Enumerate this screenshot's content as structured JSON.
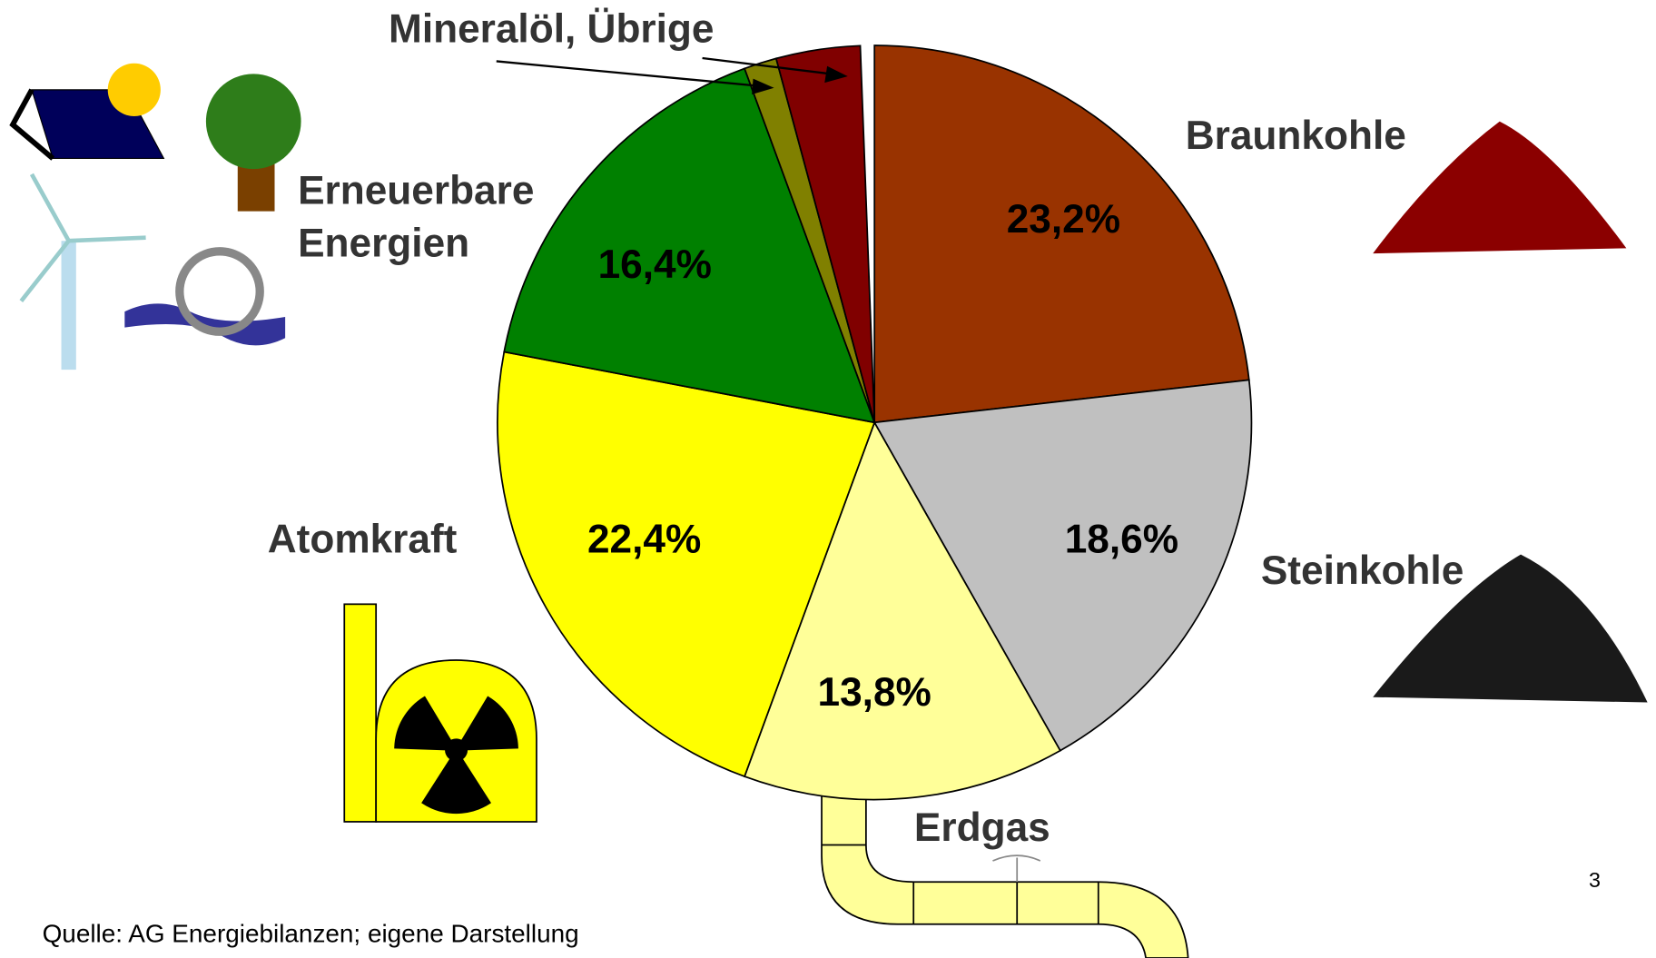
{
  "chart_data": {
    "type": "pie",
    "categories": [
      "Braunkohle",
      "Steinkohle",
      "Erdgas",
      "Atomkraft",
      "Erneuerbare Energien",
      null,
      null
    ],
    "values": [
      23.2,
      18.6,
      13.8,
      22.4,
      16.4,
      1.4,
      3.6
    ],
    "value_labels": [
      "23,2%",
      "18,6%",
      "13,8%",
      "22,4%",
      "16,4%",
      null,
      null
    ],
    "colors": [
      "#993300",
      "#c0c0c0",
      "#ffff99",
      "#ffff00",
      "#008000",
      "#808000",
      "#800000"
    ],
    "annotation": "Mineralöl, Übrige",
    "source": "Quelle: AG Energiebilanzen; eigene Darstellung",
    "page_number": "3"
  }
}
